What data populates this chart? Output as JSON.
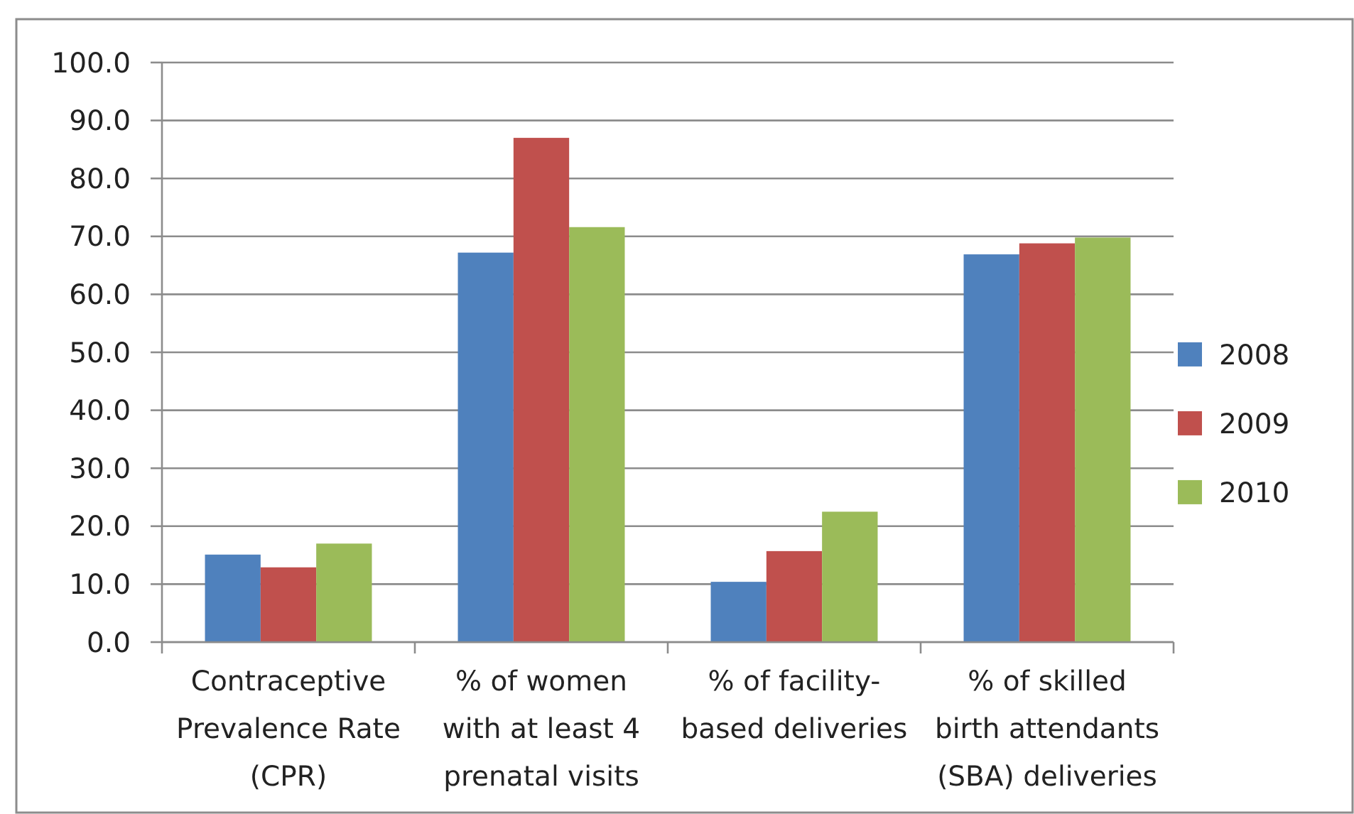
{
  "chart_data": {
    "type": "bar",
    "categories": [
      "Contraceptive Prevalence Rate (CPR)",
      "% of women with at least 4 prenatal visits",
      "% of facility-based deliveries",
      "% of skilled birth attendants (SBA) deliveries"
    ],
    "series": [
      {
        "name": "2008",
        "color": "#4f81bd",
        "values": [
          15.1,
          67.2,
          10.4,
          66.9
        ]
      },
      {
        "name": "2009",
        "color": "#c0504d",
        "values": [
          12.9,
          87.0,
          15.7,
          68.8
        ]
      },
      {
        "name": "2010",
        "color": "#9bbb59",
        "values": [
          17.0,
          71.6,
          22.5,
          69.8
        ]
      }
    ],
    "ylim": [
      0,
      100
    ],
    "yticks": [
      {
        "value": 0,
        "label": "0.0"
      },
      {
        "value": 10,
        "label": "10.0"
      },
      {
        "value": 20,
        "label": "20.0"
      },
      {
        "value": 30,
        "label": "30.0"
      },
      {
        "value": 40,
        "label": "40.0"
      },
      {
        "value": 50,
        "label": "50.0"
      },
      {
        "value": 60,
        "label": "60.0"
      },
      {
        "value": 70,
        "label": "70.0"
      },
      {
        "value": 80,
        "label": "80.0"
      },
      {
        "value": 90,
        "label": "90.0"
      },
      {
        "value": 100,
        "label": "100.0"
      }
    ],
    "grid": "y",
    "legend": "right"
  }
}
